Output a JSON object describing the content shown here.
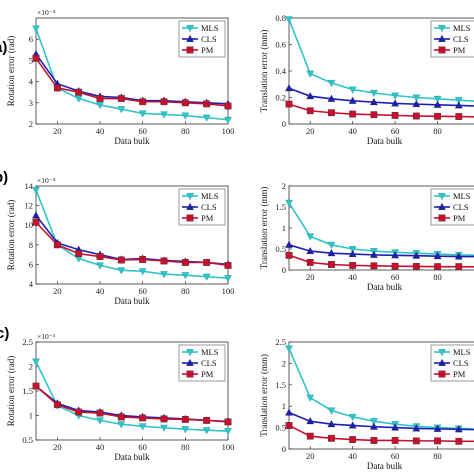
{
  "colors": {
    "MLS": "#2ec4c8",
    "CLS": "#1c1fb4",
    "PM": "#c8102e"
  },
  "chart_data": [
    {
      "type": "line",
      "panel_label": "a)",
      "xlabel": "Data bulk",
      "ylabel": "Rotation error (rad)",
      "multiplier": "×10⁻⁴",
      "x": [
        10,
        20,
        30,
        40,
        50,
        60,
        70,
        80,
        90,
        100
      ],
      "xlim": [
        10,
        100
      ],
      "xticks": [
        20,
        40,
        60,
        80,
        100
      ],
      "ylim": [
        2,
        7
      ],
      "yticks": [
        2,
        3,
        4,
        5,
        6
      ],
      "legend": "top-right",
      "series": [
        {
          "name": "MLS",
          "marker": "triangle-down",
          "values": [
            6.5,
            3.7,
            3.2,
            2.9,
            2.7,
            2.5,
            2.45,
            2.4,
            2.3,
            2.2
          ]
        },
        {
          "name": "CLS",
          "marker": "triangle-up",
          "values": [
            5.3,
            3.9,
            3.55,
            3.3,
            3.25,
            3.1,
            3.1,
            3.05,
            3.0,
            2.95
          ]
        },
        {
          "name": "PM",
          "marker": "square",
          "values": [
            5.1,
            3.7,
            3.5,
            3.2,
            3.2,
            3.05,
            3.05,
            3.0,
            2.95,
            2.85
          ]
        }
      ]
    },
    {
      "type": "line",
      "xlabel": "Data bulk",
      "ylabel": "Translation error (mm)",
      "x": [
        10,
        20,
        30,
        40,
        50,
        60,
        70,
        80,
        90,
        100
      ],
      "xlim": [
        10,
        100
      ],
      "xticks": [
        20,
        40,
        60,
        80
      ],
      "ylim": [
        0,
        0.8
      ],
      "yticks": [
        0,
        0.2,
        0.4,
        0.6,
        0.8
      ],
      "legend": "top-right",
      "series": [
        {
          "name": "MLS",
          "marker": "triangle-down",
          "values": [
            0.79,
            0.38,
            0.31,
            0.26,
            0.235,
            0.215,
            0.2,
            0.19,
            0.18,
            0.17
          ]
        },
        {
          "name": "CLS",
          "marker": "triangle-up",
          "values": [
            0.27,
            0.21,
            0.19,
            0.175,
            0.165,
            0.155,
            0.15,
            0.145,
            0.14,
            0.135
          ]
        },
        {
          "name": "PM",
          "marker": "square",
          "values": [
            0.15,
            0.1,
            0.085,
            0.075,
            0.07,
            0.065,
            0.06,
            0.058,
            0.056,
            0.054
          ]
        }
      ]
    },
    {
      "type": "line",
      "panel_label": "b)",
      "xlabel": "Data bulk",
      "ylabel": "Rotation error (rad)",
      "multiplier": "×10⁻⁴",
      "x": [
        10,
        20,
        30,
        40,
        50,
        60,
        70,
        80,
        90,
        100
      ],
      "xlim": [
        10,
        100
      ],
      "xticks": [
        20,
        40,
        60,
        80,
        100
      ],
      "ylim": [
        4,
        14
      ],
      "yticks": [
        4,
        6,
        8,
        10,
        12,
        14
      ],
      "legend": "top-right",
      "series": [
        {
          "name": "MLS",
          "marker": "triangle-down",
          "values": [
            13.6,
            8.0,
            6.6,
            5.9,
            5.4,
            5.3,
            5.0,
            4.9,
            4.75,
            4.6
          ]
        },
        {
          "name": "CLS",
          "marker": "triangle-up",
          "values": [
            11.0,
            8.2,
            7.5,
            7.0,
            6.5,
            6.6,
            6.4,
            6.3,
            6.2,
            6.0
          ]
        },
        {
          "name": "PM",
          "marker": "square",
          "values": [
            10.3,
            8.0,
            7.1,
            6.8,
            6.45,
            6.5,
            6.35,
            6.2,
            6.2,
            5.9
          ]
        }
      ]
    },
    {
      "type": "line",
      "xlabel": "Data bulk",
      "ylabel": "Translation error (mm)",
      "x": [
        10,
        20,
        30,
        40,
        50,
        60,
        70,
        80,
        90,
        100
      ],
      "xlim": [
        10,
        100
      ],
      "xticks": [
        20,
        40,
        60,
        80
      ],
      "ylim": [
        0,
        2
      ],
      "yticks": [
        0,
        0.5,
        1,
        1.5,
        2
      ],
      "legend": "top-right",
      "series": [
        {
          "name": "MLS",
          "marker": "triangle-down",
          "values": [
            1.6,
            0.8,
            0.6,
            0.5,
            0.45,
            0.42,
            0.4,
            0.38,
            0.36,
            0.35
          ]
        },
        {
          "name": "CLS",
          "marker": "triangle-up",
          "values": [
            0.6,
            0.45,
            0.4,
            0.38,
            0.36,
            0.35,
            0.34,
            0.33,
            0.32,
            0.32
          ]
        },
        {
          "name": "PM",
          "marker": "square",
          "values": [
            0.35,
            0.18,
            0.13,
            0.11,
            0.1,
            0.09,
            0.085,
            0.08,
            0.08,
            0.075
          ]
        }
      ]
    },
    {
      "type": "line",
      "panel_label": "c)",
      "xlabel": "Data bulk",
      "ylabel": "Rotation error (rad)",
      "multiplier": "×10⁻³",
      "x": [
        10,
        20,
        30,
        40,
        50,
        60,
        70,
        80,
        90,
        100
      ],
      "xlim": [
        10,
        100
      ],
      "xticks": [
        20,
        40,
        60,
        80,
        100
      ],
      "ylim": [
        0.5,
        2.5
      ],
      "yticks": [
        0.5,
        1,
        1.5,
        2,
        2.5
      ],
      "legend": "top-right",
      "series": [
        {
          "name": "MLS",
          "marker": "triangle-down",
          "values": [
            2.1,
            1.2,
            1.0,
            0.9,
            0.82,
            0.78,
            0.75,
            0.72,
            0.7,
            0.68
          ]
        },
        {
          "name": "CLS",
          "marker": "triangle-up",
          "values": [
            1.6,
            1.25,
            1.1,
            1.07,
            1.0,
            0.97,
            0.95,
            0.93,
            0.9,
            0.88
          ]
        },
        {
          "name": "PM",
          "marker": "square",
          "values": [
            1.6,
            1.22,
            1.07,
            1.05,
            0.97,
            0.95,
            0.93,
            0.92,
            0.9,
            0.87
          ]
        }
      ]
    },
    {
      "type": "line",
      "xlabel": "Data bulk",
      "ylabel": "Translation error (mm)",
      "x": [
        10,
        20,
        30,
        40,
        50,
        60,
        70,
        80,
        90,
        100
      ],
      "xlim": [
        10,
        100
      ],
      "xticks": [
        20,
        40,
        60,
        80
      ],
      "ylim": [
        0,
        2.5
      ],
      "yticks": [
        0,
        0.5,
        1,
        1.5,
        2,
        2.5
      ],
      "legend": "top-right",
      "series": [
        {
          "name": "MLS",
          "marker": "triangle-down",
          "values": [
            2.35,
            1.2,
            0.9,
            0.75,
            0.65,
            0.58,
            0.53,
            0.5,
            0.48,
            0.46
          ]
        },
        {
          "name": "CLS",
          "marker": "triangle-up",
          "values": [
            0.85,
            0.65,
            0.58,
            0.55,
            0.52,
            0.5,
            0.48,
            0.47,
            0.46,
            0.45
          ]
        },
        {
          "name": "PM",
          "marker": "square",
          "values": [
            0.55,
            0.3,
            0.25,
            0.22,
            0.2,
            0.2,
            0.19,
            0.19,
            0.18,
            0.18
          ]
        }
      ]
    }
  ]
}
